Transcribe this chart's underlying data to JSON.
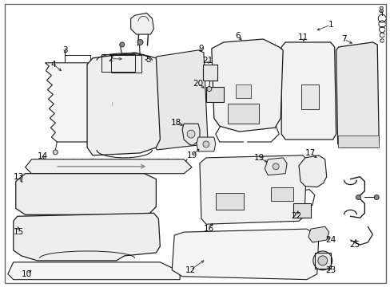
{
  "bg": "#ffffff",
  "lc": "#1a1a1a",
  "tc": "#000000",
  "fs": 7.5,
  "fw": 4.89,
  "fh": 3.6,
  "dpi": 100
}
